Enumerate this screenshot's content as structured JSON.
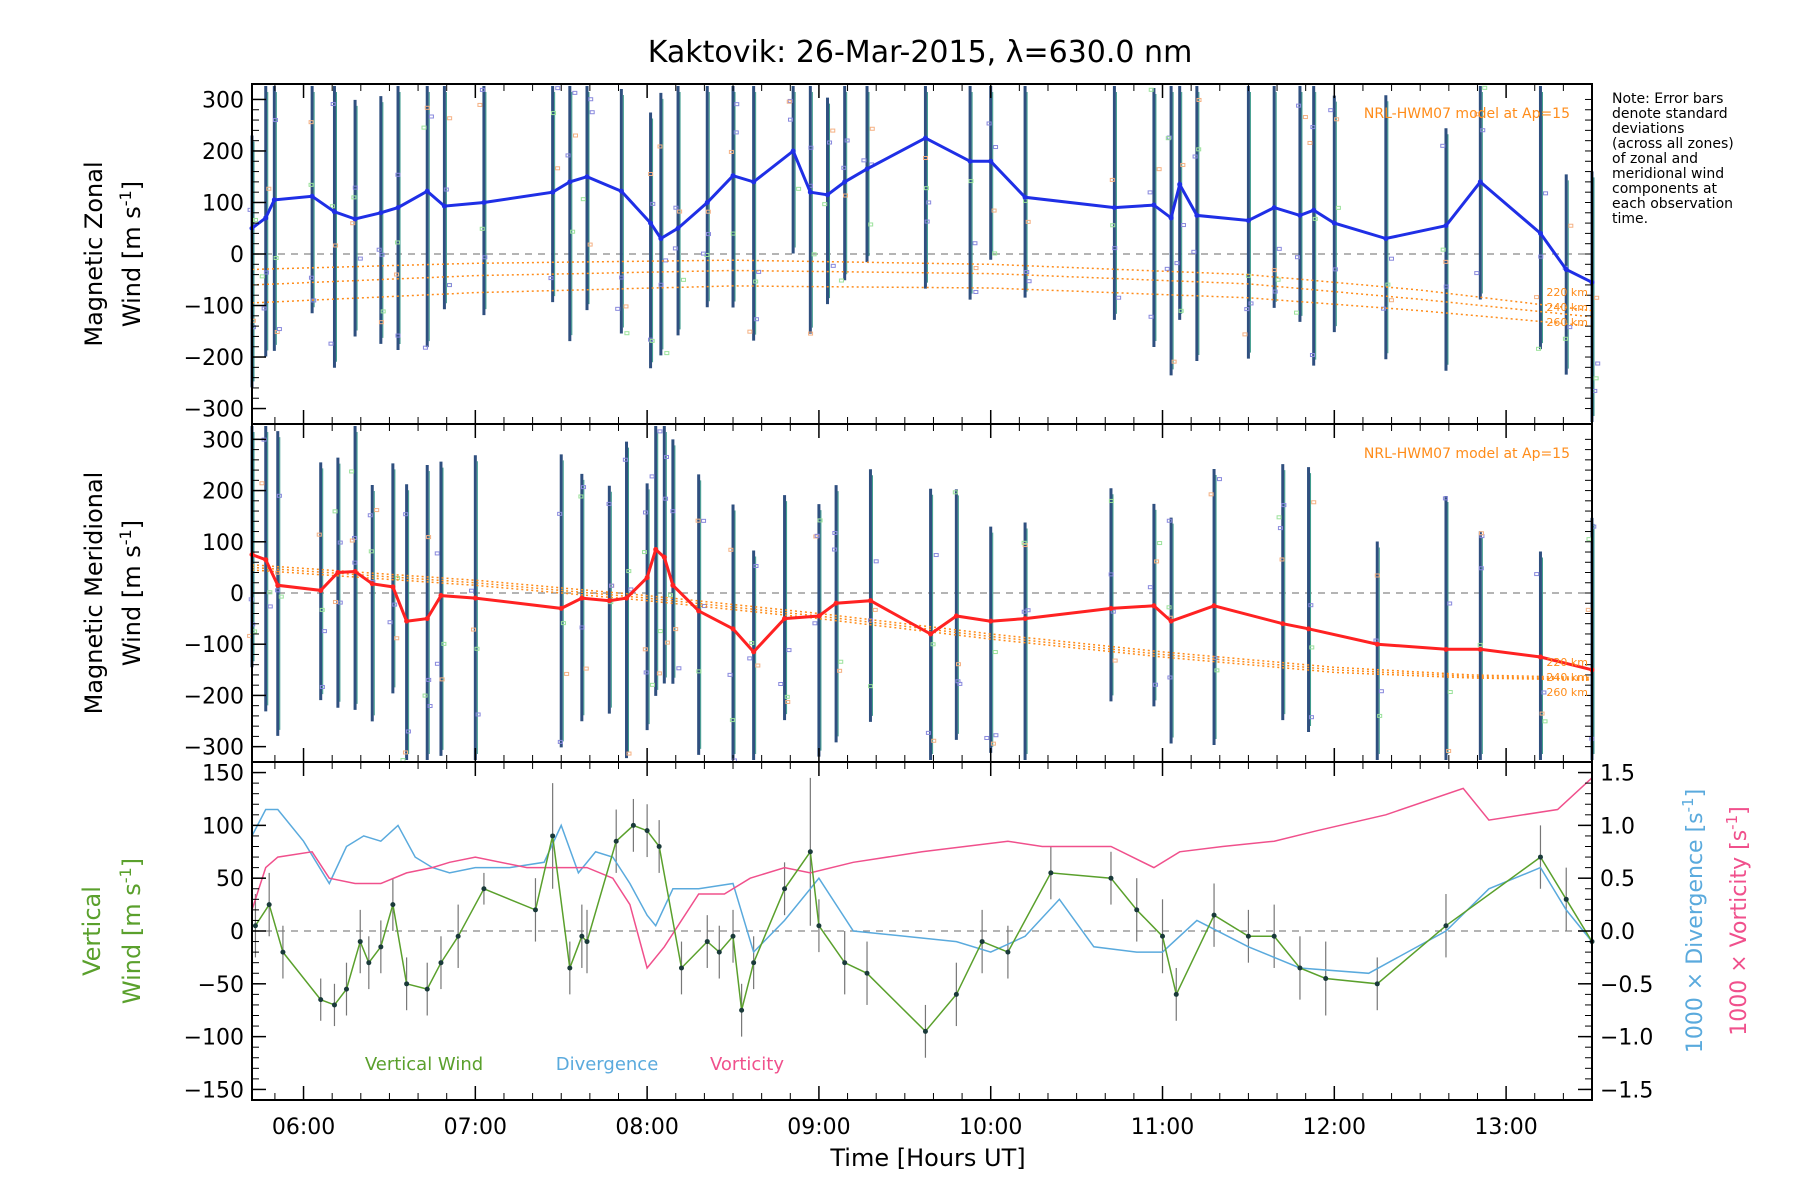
{
  "page": {
    "title": "Kaktovik: 26-Mar-2015, λ=630.0 nm",
    "xlabel": "Time [Hours UT]",
    "note_lines": [
      "Note: Error bars",
      "denote standard",
      "deviations",
      "(across all zones)",
      "of zonal and",
      "meridional wind",
      "components at",
      "each observation",
      "time."
    ]
  },
  "chart_data": [
    {
      "type": "line",
      "name": "zonal",
      "ylabel_line1": "Magnetic Zonal",
      "ylabel_line2": "Wind [m s",
      "ylabel_sup": "-1",
      "ylabel_end": "]",
      "ylim": [
        -330,
        330
      ],
      "xlim": [
        5.7,
        13.5
      ],
      "yticks": [
        300,
        200,
        100,
        0,
        -100,
        -200,
        -300
      ],
      "model_label": "NRL-HWM07 model at Ap=15",
      "model_curve_labels": [
        "220 km",
        "240 km",
        "260 km"
      ],
      "line_color": "#1f2fe6",
      "x": [
        5.7,
        5.78,
        5.83,
        6.05,
        6.18,
        6.3,
        6.45,
        6.55,
        6.72,
        6.82,
        7.05,
        7.45,
        7.55,
        7.65,
        7.85,
        8.02,
        8.08,
        8.18,
        8.35,
        8.5,
        8.62,
        8.85,
        8.95,
        9.05,
        9.15,
        9.28,
        9.62,
        9.88,
        10.0,
        10.2,
        10.72,
        10.95,
        11.05,
        11.1,
        11.2,
        11.5,
        11.65,
        11.8,
        11.88,
        12.0,
        12.3,
        12.65,
        12.85,
        13.2,
        13.35,
        13.5
      ],
      "values": [
        50,
        70,
        105,
        112,
        82,
        68,
        80,
        90,
        122,
        93,
        100,
        120,
        140,
        150,
        122,
        60,
        30,
        50,
        100,
        152,
        140,
        200,
        120,
        115,
        140,
        165,
        225,
        180,
        180,
        110,
        90,
        95,
        70,
        135,
        75,
        65,
        90,
        75,
        85,
        60,
        30,
        55,
        140,
        40,
        -30,
        -55
      ],
      "model_series": [
        {
          "x": [
            5.7,
            7.0,
            8.5,
            10.0,
            11.5,
            12.5,
            13.5
          ],
          "values": [
            -30,
            -18,
            -12,
            -20,
            -40,
            -70,
            -110
          ]
        },
        {
          "x": [
            5.7,
            7.0,
            8.5,
            10.0,
            11.5,
            12.5,
            13.5
          ],
          "values": [
            -60,
            -42,
            -32,
            -38,
            -58,
            -88,
            -122
          ]
        },
        {
          "x": [
            5.7,
            7.0,
            8.5,
            10.0,
            11.5,
            12.5,
            13.5
          ],
          "values": [
            -95,
            -75,
            -62,
            -66,
            -85,
            -110,
            -140
          ]
        }
      ]
    },
    {
      "type": "line",
      "name": "meridional",
      "ylabel_line1": "Magnetic Meridional",
      "ylabel_line2": "Wind [m s",
      "ylabel_sup": "-1",
      "ylabel_end": "]",
      "ylim": [
        -330,
        330
      ],
      "xlim": [
        5.7,
        13.5
      ],
      "yticks": [
        300,
        200,
        100,
        0,
        -100,
        -200,
        -300
      ],
      "model_label": "NRL-HWM07 model at Ap=15",
      "model_curve_labels": [
        "220 km",
        "240 km",
        "260 km"
      ],
      "line_color": "#ff2222",
      "x": [
        5.7,
        5.78,
        5.85,
        6.1,
        6.2,
        6.3,
        6.4,
        6.52,
        6.6,
        6.72,
        6.8,
        7.0,
        7.5,
        7.62,
        7.78,
        7.88,
        8.0,
        8.05,
        8.1,
        8.15,
        8.3,
        8.5,
        8.62,
        8.8,
        9.0,
        9.1,
        9.3,
        9.65,
        9.8,
        10.0,
        10.2,
        10.7,
        10.95,
        11.05,
        11.3,
        11.7,
        11.85,
        12.25,
        12.65,
        12.85,
        13.2,
        13.5
      ],
      "values": [
        75,
        65,
        15,
        5,
        40,
        42,
        18,
        12,
        -55,
        -50,
        -5,
        -10,
        -30,
        -10,
        -15,
        -10,
        30,
        85,
        70,
        15,
        -35,
        -70,
        -115,
        -50,
        -45,
        -20,
        -15,
        -80,
        -45,
        -55,
        -50,
        -30,
        -25,
        -55,
        -25,
        -60,
        -70,
        -100,
        -110,
        -110,
        -125,
        -150
      ],
      "model_series": [
        {
          "x": [
            5.7,
            7.0,
            8.0,
            9.0,
            10.0,
            11.0,
            12.0,
            12.8,
            13.5
          ],
          "values": [
            55,
            25,
            -5,
            -40,
            -80,
            -115,
            -145,
            -160,
            -165
          ]
        },
        {
          "x": [
            5.7,
            7.0,
            8.0,
            9.0,
            10.0,
            11.0,
            12.0,
            12.8,
            13.5
          ],
          "values": [
            50,
            20,
            -10,
            -45,
            -85,
            -120,
            -150,
            -163,
            -168
          ]
        },
        {
          "x": [
            5.7,
            7.0,
            8.0,
            9.0,
            10.0,
            11.0,
            12.0,
            12.8,
            13.5
          ],
          "values": [
            45,
            15,
            -15,
            -50,
            -90,
            -125,
            -155,
            -166,
            -170
          ]
        }
      ]
    },
    {
      "type": "line",
      "name": "vertical",
      "ylabel_line1": "Vertical",
      "ylabel_line2": "Wind [m s",
      "ylabel_sup": "-1",
      "ylabel_end": "]",
      "ylim": [
        -160,
        160
      ],
      "xlim": [
        5.7,
        13.5
      ],
      "yticks": [
        150,
        100,
        50,
        0,
        -50,
        -100,
        -150
      ],
      "y2label_divergence": "1000 × Divergence [s",
      "y2label_vorticity": "1000 × Vorticity [s",
      "y2label_sup": "-1",
      "y2label_end": "]",
      "y2lim": [
        -1.6,
        1.6
      ],
      "y2ticks": [
        1.5,
        1.0,
        0.5,
        0.0,
        -0.5,
        -1.0,
        -1.5
      ],
      "y2ticklabels": [
        "1.5",
        "1.0",
        "0.5",
        "0.0",
        "−0.5",
        "−1.0",
        "−1.5"
      ],
      "legend": [
        "Vertical Wind",
        "Divergence",
        "Vorticity"
      ],
      "colors": {
        "vertical": "#5aa02c",
        "divergence": "#5aaadd",
        "vorticity": "#f0508c",
        "error": "#777777"
      },
      "vertical_x": [
        5.72,
        5.8,
        5.88,
        6.1,
        6.18,
        6.25,
        6.33,
        6.38,
        6.45,
        6.52,
        6.6,
        6.72,
        6.8,
        6.9,
        7.05,
        7.35,
        7.45,
        7.55,
        7.62,
        7.65,
        7.82,
        7.92,
        8.0,
        8.07,
        8.2,
        8.35,
        8.42,
        8.5,
        8.55,
        8.62,
        8.8,
        8.95,
        9.0,
        9.15,
        9.28,
        9.62,
        9.8,
        9.95,
        10.1,
        10.35,
        10.7,
        10.85,
        11.0,
        11.08,
        11.3,
        11.5,
        11.65,
        11.8,
        11.95,
        12.25,
        12.65,
        13.2,
        13.35,
        13.5
      ],
      "vertical_values": [
        5,
        25,
        -20,
        -65,
        -70,
        -55,
        -10,
        -30,
        -15,
        25,
        -50,
        -55,
        -30,
        -5,
        40,
        20,
        90,
        -35,
        -5,
        -10,
        85,
        100,
        95,
        80,
        -35,
        -10,
        -20,
        -5,
        -75,
        -30,
        40,
        75,
        5,
        -30,
        -40,
        -95,
        -60,
        -10,
        -20,
        55,
        50,
        20,
        -5,
        -60,
        15,
        -5,
        -5,
        -35,
        -45,
        -50,
        5,
        70,
        30,
        -10
      ],
      "vertical_err": [
        30,
        30,
        25,
        20,
        20,
        25,
        30,
        25,
        25,
        25,
        25,
        25,
        25,
        30,
        15,
        30,
        50,
        25,
        30,
        30,
        30,
        25,
        25,
        25,
        25,
        25,
        25,
        25,
        25,
        25,
        25,
        70,
        25,
        30,
        30,
        25,
        30,
        30,
        25,
        25,
        25,
        30,
        35,
        25,
        30,
        25,
        30,
        30,
        35,
        25,
        30,
        30,
        30,
        30
      ],
      "divergence_x": [
        5.7,
        5.78,
        5.85,
        6.0,
        6.15,
        6.25,
        6.35,
        6.45,
        6.55,
        6.65,
        6.75,
        6.85,
        7.0,
        7.2,
        7.4,
        7.5,
        7.6,
        7.7,
        7.8,
        7.9,
        8.0,
        8.05,
        8.15,
        8.3,
        8.5,
        8.62,
        8.8,
        9.0,
        9.2,
        9.5,
        9.8,
        10.0,
        10.2,
        10.4,
        10.6,
        10.85,
        11.0,
        11.2,
        11.5,
        11.8,
        12.2,
        12.65,
        12.9,
        13.2,
        13.35,
        13.5
      ],
      "divergence_values": [
        0.9,
        1.15,
        1.15,
        0.85,
        0.45,
        0.8,
        0.9,
        0.85,
        1.0,
        0.7,
        0.6,
        0.55,
        0.6,
        0.6,
        0.65,
        1.0,
        0.55,
        0.75,
        0.7,
        0.45,
        0.15,
        0.05,
        0.4,
        0.4,
        0.45,
        -0.2,
        0.1,
        0.5,
        0.0,
        -0.05,
        -0.1,
        -0.2,
        -0.05,
        0.3,
        -0.15,
        -0.2,
        -0.2,
        0.1,
        -0.15,
        -0.35,
        -0.4,
        0.0,
        0.4,
        0.6,
        0.2,
        -0.1
      ],
      "vorticity_x": [
        5.7,
        5.78,
        5.85,
        6.05,
        6.15,
        6.3,
        6.45,
        6.6,
        6.75,
        6.85,
        7.0,
        7.3,
        7.5,
        7.65,
        7.8,
        7.9,
        8.0,
        8.1,
        8.3,
        8.45,
        8.6,
        8.8,
        8.95,
        9.2,
        9.6,
        9.85,
        10.1,
        10.3,
        10.7,
        10.95,
        11.1,
        11.35,
        11.65,
        11.9,
        12.3,
        12.75,
        12.9,
        13.3,
        13.5
      ],
      "vorticity_values": [
        0.2,
        0.6,
        0.7,
        0.75,
        0.5,
        0.45,
        0.45,
        0.55,
        0.6,
        0.65,
        0.7,
        0.6,
        0.6,
        0.6,
        0.5,
        0.25,
        -0.35,
        -0.15,
        0.35,
        0.35,
        0.5,
        0.6,
        0.55,
        0.65,
        0.75,
        0.8,
        0.85,
        0.8,
        0.8,
        0.6,
        0.75,
        0.8,
        0.85,
        0.95,
        1.1,
        1.35,
        1.05,
        1.15,
        1.45
      ]
    }
  ]
}
